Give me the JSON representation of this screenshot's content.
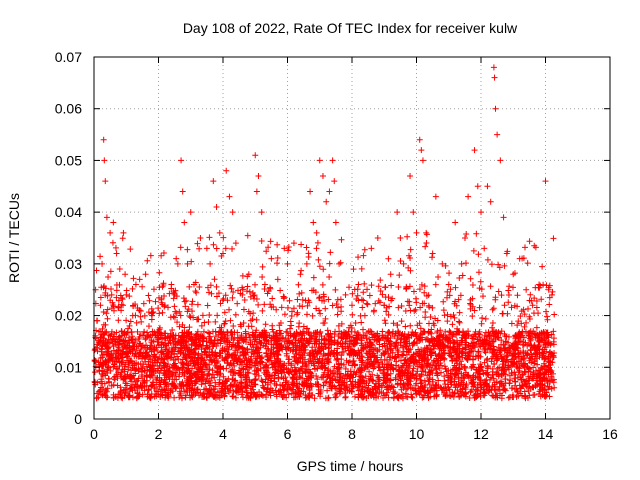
{
  "chart_data": {
    "type": "scatter",
    "title": "Day 108 of 2022, Rate Of TEC Index for receiver kulw",
    "xlabel": "GPS time / hours",
    "ylabel": "ROTI / TECUs",
    "xlim": [
      0,
      16
    ],
    "ylim": [
      0,
      0.07
    ],
    "x_ticks": [
      "0",
      "2",
      "4",
      "6",
      "8",
      "10",
      "12",
      "14",
      "16"
    ],
    "y_ticks": [
      "0",
      "0.01",
      "0.02",
      "0.03",
      "0.04",
      "0.05",
      "0.06",
      "0.07"
    ],
    "x_tick_values": [
      0,
      2,
      4,
      6,
      8,
      10,
      12,
      14,
      16
    ],
    "y_tick_values": [
      0,
      0.01,
      0.02,
      0.03,
      0.04,
      0.05,
      0.06,
      0.07
    ],
    "grid": true,
    "marker": "plus",
    "color": "#ff0000",
    "series": [
      {
        "values_note_points": [
          [
            0.05,
            0.025
          ],
          [
            0.1,
            0.019
          ],
          [
            0.2,
            0.022
          ],
          [
            0.25,
            0.03
          ],
          [
            0.3,
            0.054
          ],
          [
            0.32,
            0.05
          ],
          [
            0.35,
            0.046
          ],
          [
            0.4,
            0.039
          ],
          [
            0.5,
            0.036
          ],
          [
            0.6,
            0.038
          ],
          [
            0.7,
            0.032
          ],
          [
            0.8,
            0.029
          ],
          [
            0.9,
            0.022
          ],
          [
            1.0,
            0.024
          ],
          [
            1.1,
            0.018
          ],
          [
            1.2,
            0.02
          ],
          [
            1.3,
            0.026
          ],
          [
            1.4,
            0.021
          ],
          [
            1.6,
            0.028
          ],
          [
            1.8,
            0.02
          ],
          [
            2.0,
            0.017
          ],
          [
            2.2,
            0.022
          ],
          [
            2.4,
            0.026
          ],
          [
            2.5,
            0.024
          ],
          [
            2.6,
            0.03
          ],
          [
            2.7,
            0.05
          ],
          [
            2.75,
            0.044
          ],
          [
            2.8,
            0.038
          ],
          [
            2.9,
            0.03
          ],
          [
            3.0,
            0.04
          ],
          [
            3.1,
            0.026
          ],
          [
            3.3,
            0.035
          ],
          [
            3.5,
            0.033
          ],
          [
            3.6,
            0.03
          ],
          [
            3.7,
            0.046
          ],
          [
            3.8,
            0.041
          ],
          [
            3.9,
            0.036
          ],
          [
            4.0,
            0.032
          ],
          [
            4.1,
            0.048
          ],
          [
            4.2,
            0.043
          ],
          [
            4.3,
            0.04
          ],
          [
            4.4,
            0.034
          ],
          [
            4.6,
            0.024
          ],
          [
            4.8,
            0.028
          ],
          [
            5.0,
            0.051
          ],
          [
            5.05,
            0.044
          ],
          [
            5.1,
            0.047
          ],
          [
            5.2,
            0.04
          ],
          [
            5.3,
            0.026
          ],
          [
            5.5,
            0.031
          ],
          [
            5.7,
            0.027
          ],
          [
            5.9,
            0.033
          ],
          [
            6.0,
            0.03
          ],
          [
            6.2,
            0.034
          ],
          [
            6.4,
            0.028
          ],
          [
            6.6,
            0.03
          ],
          [
            6.7,
            0.044
          ],
          [
            6.8,
            0.038
          ],
          [
            6.9,
            0.033
          ],
          [
            7.0,
            0.05
          ],
          [
            7.1,
            0.047
          ],
          [
            7.2,
            0.042
          ],
          [
            7.3,
            0.044
          ],
          [
            7.4,
            0.05
          ],
          [
            7.45,
            0.046
          ],
          [
            7.5,
            0.038
          ],
          [
            7.6,
            0.03
          ],
          [
            7.8,
            0.024
          ],
          [
            8.0,
            0.022
          ],
          [
            8.2,
            0.026
          ],
          [
            8.4,
            0.02
          ],
          [
            8.6,
            0.033
          ],
          [
            8.8,
            0.035
          ],
          [
            9.0,
            0.022
          ],
          [
            9.2,
            0.028
          ],
          [
            9.4,
            0.04
          ],
          [
            9.5,
            0.035
          ],
          [
            9.6,
            0.03
          ],
          [
            9.8,
            0.047
          ],
          [
            9.9,
            0.04
          ],
          [
            10.0,
            0.036
          ],
          [
            10.1,
            0.054
          ],
          [
            10.15,
            0.052
          ],
          [
            10.2,
            0.05
          ],
          [
            10.3,
            0.036
          ],
          [
            10.5,
            0.032
          ],
          [
            10.6,
            0.043
          ],
          [
            10.8,
            0.03
          ],
          [
            11.0,
            0.026
          ],
          [
            11.2,
            0.038
          ],
          [
            11.4,
            0.03
          ],
          [
            11.6,
            0.043
          ],
          [
            11.8,
            0.052
          ],
          [
            11.9,
            0.045
          ],
          [
            12.0,
            0.04
          ],
          [
            12.1,
            0.033
          ],
          [
            12.2,
            0.045
          ],
          [
            12.3,
            0.042
          ],
          [
            12.4,
            0.068
          ],
          [
            12.42,
            0.066
          ],
          [
            12.45,
            0.06
          ],
          [
            12.5,
            0.055
          ],
          [
            12.6,
            0.05
          ],
          [
            12.7,
            0.039
          ],
          [
            12.8,
            0.032
          ],
          [
            13.0,
            0.028
          ],
          [
            13.2,
            0.031
          ],
          [
            13.4,
            0.025
          ],
          [
            13.6,
            0.022
          ],
          [
            13.8,
            0.026
          ],
          [
            14.0,
            0.046
          ],
          [
            14.1,
            0.025
          ],
          [
            14.2,
            0.024
          ]
        ]
      }
    ]
  }
}
